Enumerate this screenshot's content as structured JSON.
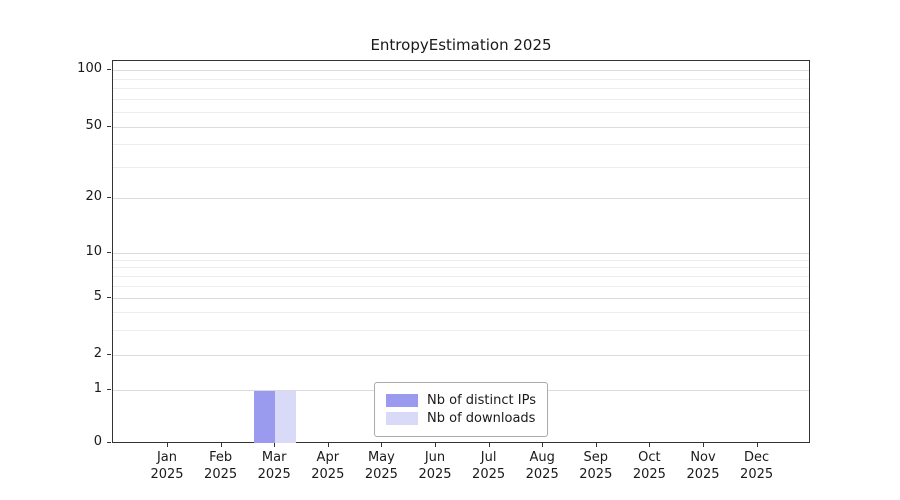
{
  "title": "EntropyEstimation 2025",
  "chart_data": {
    "type": "bar",
    "title": "EntropyEstimation 2025",
    "categories": [
      "Jan",
      "Feb",
      "Mar",
      "Apr",
      "May",
      "Jun",
      "Jul",
      "Aug",
      "Sep",
      "Oct",
      "Nov",
      "Dec"
    ],
    "category_year": "2025",
    "series": [
      {
        "name": "Nb of distinct IPs",
        "color": "#9a9aee",
        "values": [
          0,
          0,
          1,
          0,
          0,
          0,
          0,
          0,
          0,
          0,
          0,
          0
        ]
      },
      {
        "name": "Nb of downloads",
        "color": "#d9d9f8",
        "values": [
          0,
          0,
          1,
          0,
          0,
          0,
          0,
          0,
          0,
          0,
          0,
          0
        ]
      }
    ],
    "yscale": "symlog",
    "yticks": [
      0,
      1,
      2,
      5,
      10,
      20,
      50,
      100
    ],
    "yticks_minor": [
      3,
      4,
      6,
      7,
      8,
      9,
      30,
      40,
      60,
      70,
      80,
      90
    ],
    "ylim": [
      0,
      110
    ],
    "xlabel": "",
    "ylabel": "",
    "grid": "horizontal",
    "legend_position": "lower center"
  }
}
